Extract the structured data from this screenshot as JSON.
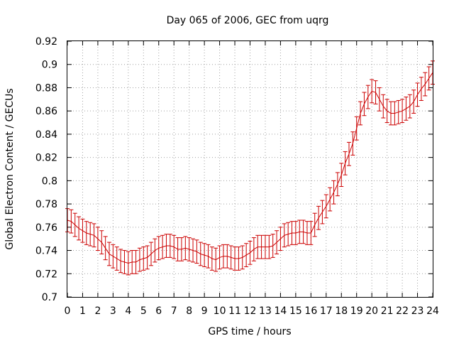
{
  "chart_data": {
    "type": "line",
    "title": "Day 065 of 2006, GEC from uqrg",
    "xlabel": "GPS time / hours",
    "ylabel": "Global Electron Content / GECUs",
    "xlim": [
      0,
      24
    ],
    "ylim": [
      0.7,
      0.92
    ],
    "xticks": [
      "0",
      "1",
      "2",
      "3",
      "4",
      "5",
      "6",
      "7",
      "8",
      "9",
      "10",
      "11",
      "12",
      "13",
      "14",
      "15",
      "16",
      "17",
      "18",
      "19",
      "20",
      "21",
      "22",
      "23",
      "24"
    ],
    "yticks": [
      "0.7",
      "0.72",
      "0.74",
      "0.76",
      "0.78",
      "0.8",
      "0.82",
      "0.84",
      "0.86",
      "0.88",
      "0.9",
      "0.92"
    ],
    "grid": true,
    "series": [
      {
        "color": "#cc0000",
        "error": 0.01,
        "x": [
          0,
          0.25,
          0.5,
          0.75,
          1,
          1.25,
          1.5,
          1.75,
          2,
          2.25,
          2.5,
          2.75,
          3,
          3.25,
          3.5,
          3.75,
          4,
          4.25,
          4.5,
          4.75,
          5,
          5.25,
          5.5,
          5.75,
          6,
          6.25,
          6.5,
          6.75,
          7,
          7.25,
          7.5,
          7.75,
          8,
          8.25,
          8.5,
          8.75,
          9,
          9.25,
          9.5,
          9.75,
          10,
          10.25,
          10.5,
          10.75,
          11,
          11.25,
          11.5,
          11.75,
          12,
          12.25,
          12.5,
          12.75,
          13,
          13.25,
          13.5,
          13.75,
          14,
          14.25,
          14.5,
          14.75,
          15,
          15.25,
          15.5,
          15.75,
          16,
          16.25,
          16.5,
          16.75,
          17,
          17.25,
          17.5,
          17.75,
          18,
          18.25,
          18.5,
          18.75,
          19,
          19.25,
          19.5,
          19.75,
          20,
          20.25,
          20.5,
          20.75,
          21,
          21.25,
          21.5,
          21.75,
          22,
          22.25,
          22.5,
          22.75,
          23,
          23.25,
          23.5,
          23.75,
          24
        ],
        "y": [
          0.766,
          0.765,
          0.762,
          0.759,
          0.757,
          0.755,
          0.754,
          0.753,
          0.75,
          0.747,
          0.742,
          0.737,
          0.735,
          0.733,
          0.731,
          0.73,
          0.729,
          0.73,
          0.73,
          0.732,
          0.733,
          0.734,
          0.737,
          0.74,
          0.742,
          0.743,
          0.744,
          0.744,
          0.743,
          0.741,
          0.741,
          0.742,
          0.741,
          0.74,
          0.739,
          0.737,
          0.736,
          0.735,
          0.733,
          0.732,
          0.734,
          0.735,
          0.735,
          0.734,
          0.733,
          0.733,
          0.734,
          0.736,
          0.738,
          0.741,
          0.743,
          0.743,
          0.743,
          0.743,
          0.744,
          0.747,
          0.75,
          0.753,
          0.754,
          0.755,
          0.755,
          0.756,
          0.756,
          0.755,
          0.755,
          0.762,
          0.768,
          0.773,
          0.778,
          0.784,
          0.79,
          0.797,
          0.805,
          0.815,
          0.823,
          0.832,
          0.845,
          0.858,
          0.866,
          0.872,
          0.877,
          0.876,
          0.87,
          0.864,
          0.86,
          0.858,
          0.858,
          0.859,
          0.86,
          0.862,
          0.864,
          0.868,
          0.874,
          0.879,
          0.883,
          0.888,
          0.893
        ]
      }
    ]
  }
}
